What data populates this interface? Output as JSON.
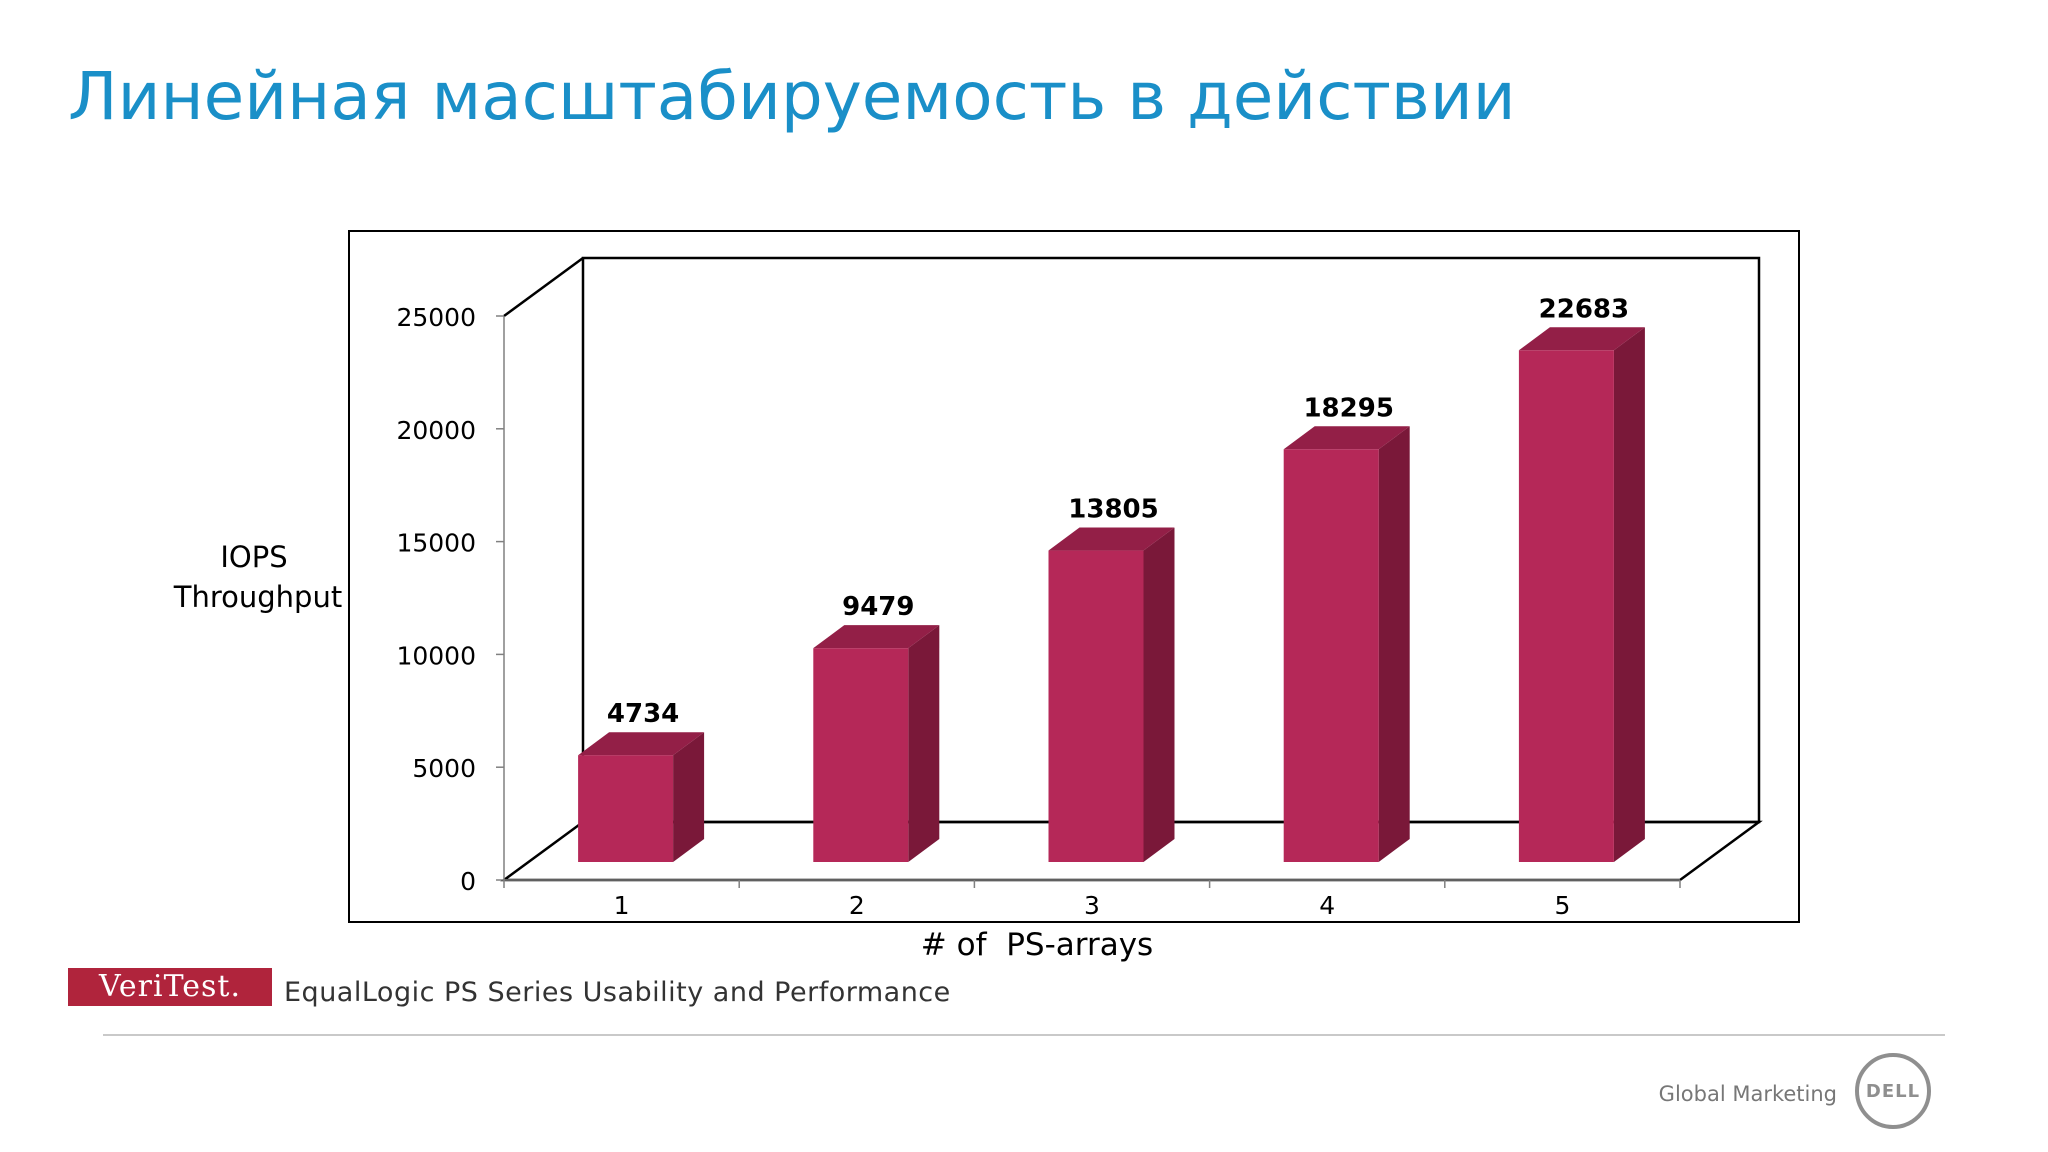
{
  "slide": {
    "title": "Линейная масштабируемость в действии",
    "source_logo": "VeriTest.",
    "source_text": "EqualLogic PS Series Usability and Performance",
    "footer_brand": "Global Marketing",
    "footer_logo": "DELL"
  },
  "colors": {
    "title": "#1a8fc8",
    "bar_front": "#b52858",
    "bar_side": "#7a1839",
    "bar_top": "#931f47"
  },
  "chart_data": {
    "type": "bar",
    "style": "3d-column",
    "categories": [
      "1",
      "2",
      "3",
      "4",
      "5"
    ],
    "values": [
      4734,
      9479,
      13805,
      18295,
      22683
    ],
    "data_labels": [
      "4734",
      "9479",
      "13805",
      "18295",
      "22683"
    ],
    "title": "",
    "xlabel": "# of  PS-arrays",
    "ylabel_lines": [
      "IOPS",
      "Throughput"
    ],
    "ylim": [
      0,
      25000
    ],
    "yticks": [
      0,
      5000,
      10000,
      15000,
      20000,
      25000
    ],
    "ytick_labels": [
      "0",
      "5000",
      "10000",
      "15000",
      "20000",
      "25000"
    ],
    "grid": false,
    "legend": "none"
  }
}
